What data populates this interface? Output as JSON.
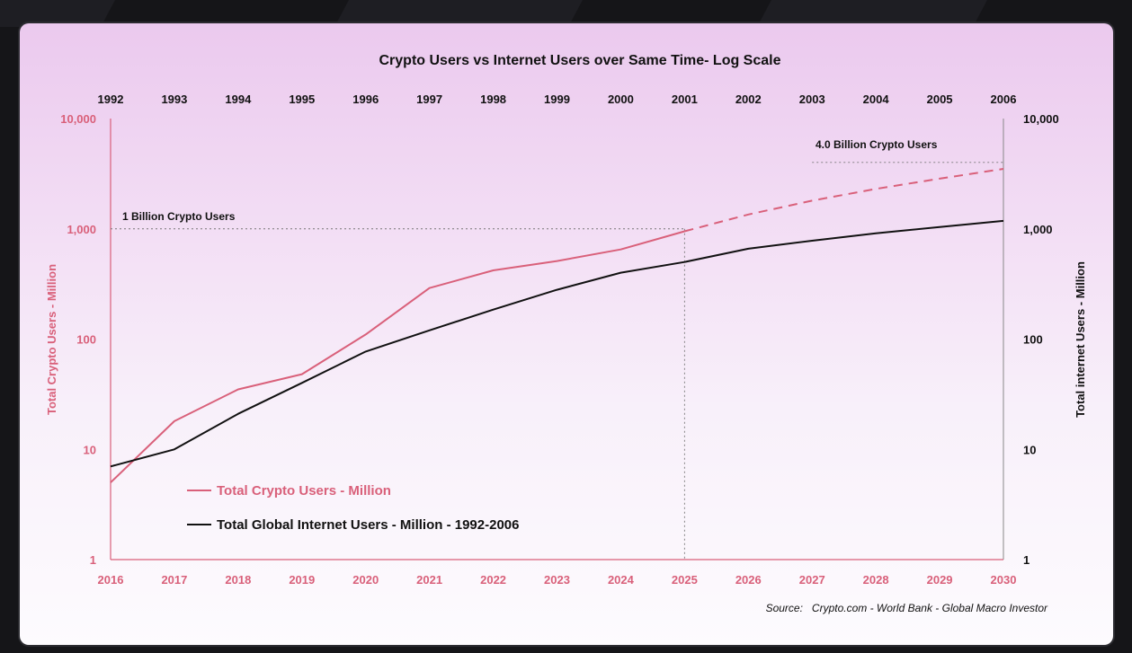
{
  "chart_data": {
    "type": "line",
    "title": "Crypto Users vs Internet Users over Same Time- Log Scale",
    "scale": "log",
    "grid": false,
    "legend_placement": "bottom-left",
    "ylabel_left": "Total Crypto Users - Million",
    "ylabel_right": "Total internet Users - Million",
    "y_ticks": [
      "1",
      "10",
      "100",
      "1,000",
      "10,000"
    ],
    "y_tick_values": [
      1,
      10,
      100,
      1000,
      10000
    ],
    "ylim": [
      1,
      10000
    ],
    "x_bottom": [
      "2016",
      "2017",
      "2018",
      "2019",
      "2020",
      "2021",
      "2022",
      "2023",
      "2024",
      "2025",
      "2026",
      "2027",
      "2028",
      "2029",
      "2030"
    ],
    "x_top": [
      "1992",
      "1993",
      "1994",
      "1995",
      "1996",
      "1997",
      "1998",
      "1999",
      "2000",
      "2001",
      "2002",
      "2003",
      "2004",
      "2005",
      "2006"
    ],
    "colors": {
      "crypto": "#d9607a",
      "internet": "#111111"
    },
    "series": [
      {
        "name": "Total Crypto Users - Million",
        "axis": "bottom",
        "x": [
          2016,
          2017,
          2018,
          2019,
          2020,
          2021,
          2022,
          2023,
          2024,
          2025
        ],
        "values": [
          5,
          18,
          35,
          48,
          110,
          290,
          420,
          510,
          650,
          950
        ],
        "style": "solid"
      },
      {
        "name": "Total Crypto Users - Million (projection)",
        "axis": "bottom",
        "x": [
          2025,
          2026,
          2027,
          2028,
          2029,
          2030
        ],
        "values": [
          950,
          1350,
          1800,
          2300,
          2850,
          3500
        ],
        "style": "dashed"
      },
      {
        "name": "Total Global Internet Users - Million - 1992-2006",
        "axis": "top",
        "x": [
          1992,
          1993,
          1994,
          1995,
          1996,
          1997,
          1998,
          1999,
          2000,
          2001,
          2002,
          2003,
          2004,
          2005,
          2006
        ],
        "values": [
          7,
          10,
          21,
          40,
          77,
          120,
          185,
          280,
          400,
          500,
          660,
          780,
          910,
          1040,
          1180
        ],
        "style": "solid"
      }
    ],
    "annotations": [
      {
        "text": "1 Billion Crypto Users",
        "value": 1000
      },
      {
        "text": "4.0 Billion Crypto Users",
        "value": 4000
      }
    ],
    "marker_year": 2025,
    "source": "Source:   Crypto.com - World Bank - Global Macro Investor"
  }
}
